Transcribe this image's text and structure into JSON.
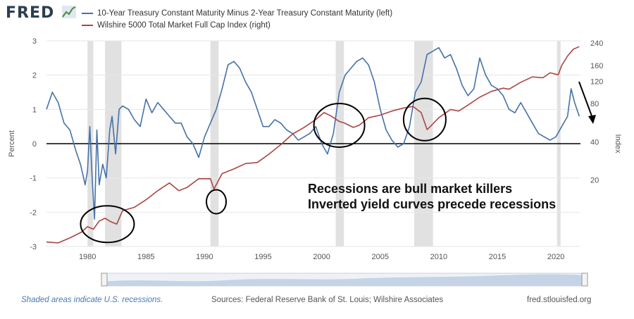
{
  "header": {
    "logo_text": "FRED",
    "legend": [
      {
        "label": "10-Year Treasury Constant Maturity Minus 2-Year Treasury Constant Maturity (left)",
        "color": "#4572a7"
      },
      {
        "label": "Wilshire 5000 Total Market Full Cap Index (right)",
        "color": "#aa4643"
      }
    ]
  },
  "annotations": {
    "line1": "Recessions are bull market killers",
    "line2": "Inverted yield curves precede recessions"
  },
  "footer": {
    "note": "Shaded areas indicate U.S. recessions.",
    "sources": "Sources: Federal Reserve Bank of St. Louis; Wilshire Associates",
    "site": "fred.stlouisfed.org"
  },
  "chart_data": {
    "type": "line",
    "title": "",
    "xlabel": "",
    "ylabel_left": "Percent",
    "ylabel_right": "Index",
    "x_range": [
      1976.5,
      2022.1
    ],
    "x_ticks": [
      1980,
      1985,
      1990,
      1995,
      2000,
      2005,
      2010,
      2015,
      2020
    ],
    "y_left_range": [
      -3,
      3
    ],
    "y_left_ticks": [
      -3,
      -2,
      -1,
      0,
      1,
      2,
      3
    ],
    "y_right_log_range": [
      6,
      250
    ],
    "y_right_ticks": [
      20,
      40,
      80,
      120,
      160,
      240
    ],
    "recessions": [
      [
        1980.0,
        1980.5
      ],
      [
        1981.5,
        1982.9
      ],
      [
        1990.5,
        1991.2
      ],
      [
        2001.2,
        2001.9
      ],
      [
        2007.9,
        2009.5
      ],
      [
        2020.1,
        2020.4
      ]
    ],
    "series": [
      {
        "name": "10-Year Treasury Constant Maturity Minus 2-Year Treasury Constant Maturity (left)",
        "axis": "left",
        "x": [
          1976.5,
          1977.0,
          1977.5,
          1978.0,
          1978.5,
          1979.0,
          1979.4,
          1979.8,
          1980.0,
          1980.2,
          1980.4,
          1980.6,
          1980.8,
          1981.0,
          1981.3,
          1981.6,
          1981.9,
          1982.1,
          1982.4,
          1982.7,
          1983.0,
          1983.5,
          1984.0,
          1984.5,
          1985.0,
          1985.5,
          1986.0,
          1986.5,
          1987.0,
          1987.5,
          1988.0,
          1988.5,
          1989.0,
          1989.5,
          1990.0,
          1990.5,
          1991.0,
          1991.5,
          1992.0,
          1992.5,
          1993.0,
          1993.5,
          1994.0,
          1994.5,
          1995.0,
          1995.5,
          1996.0,
          1996.5,
          1997.0,
          1997.5,
          1998.0,
          1998.5,
          1999.0,
          1999.5,
          2000.0,
          2000.5,
          2001.0,
          2001.5,
          2002.0,
          2002.5,
          2003.0,
          2003.5,
          2004.0,
          2004.5,
          2005.0,
          2005.5,
          2006.0,
          2006.5,
          2007.0,
          2007.5,
          2008.0,
          2008.5,
          2009.0,
          2009.5,
          2010.0,
          2010.5,
          2011.0,
          2011.5,
          2012.0,
          2012.5,
          2013.0,
          2013.5,
          2014.0,
          2014.5,
          2015.0,
          2015.5,
          2016.0,
          2016.5,
          2017.0,
          2017.5,
          2018.0,
          2018.5,
          2019.0,
          2019.5,
          2020.0,
          2020.5,
          2021.0,
          2021.3,
          2021.6,
          2022.0
        ],
        "values": [
          1.0,
          1.5,
          1.2,
          0.6,
          0.4,
          -0.2,
          -0.6,
          -1.2,
          -0.8,
          0.5,
          -1.0,
          -2.2,
          0.4,
          -1.2,
          -0.6,
          -1.0,
          0.4,
          0.8,
          -0.3,
          1.0,
          1.1,
          1.0,
          0.7,
          0.5,
          1.3,
          0.9,
          1.2,
          1.0,
          0.8,
          0.6,
          0.6,
          0.2,
          0.0,
          -0.4,
          0.2,
          0.6,
          1.0,
          1.6,
          2.3,
          2.4,
          2.2,
          1.8,
          1.5,
          1.0,
          0.5,
          0.5,
          0.7,
          0.6,
          0.4,
          0.3,
          0.1,
          0.2,
          0.3,
          0.5,
          0.0,
          -0.3,
          0.3,
          1.5,
          2.0,
          2.2,
          2.4,
          2.5,
          2.3,
          1.8,
          1.0,
          0.4,
          0.1,
          -0.1,
          0.0,
          0.5,
          1.5,
          1.8,
          2.6,
          2.7,
          2.8,
          2.5,
          2.6,
          2.2,
          1.7,
          1.4,
          1.6,
          2.5,
          2.0,
          1.7,
          1.6,
          1.4,
          1.0,
          0.9,
          1.2,
          0.9,
          0.6,
          0.3,
          0.2,
          0.1,
          0.2,
          0.5,
          0.8,
          1.6,
          1.2,
          0.8
        ]
      },
      {
        "name": "Wilshire 5000 Total Market Full Cap Index (right)",
        "axis": "right",
        "x": [
          1976.5,
          1977.5,
          1978.5,
          1979.5,
          1980.0,
          1980.5,
          1981.0,
          1981.5,
          1982.0,
          1982.5,
          1983.0,
          1984.0,
          1985.0,
          1986.0,
          1987.0,
          1987.8,
          1988.5,
          1989.5,
          1990.5,
          1990.8,
          1991.5,
          1992.5,
          1993.5,
          1994.5,
          1995.5,
          1996.5,
          1997.5,
          1998.5,
          1999.5,
          2000.2,
          2000.8,
          2001.5,
          2002.0,
          2002.7,
          2003.2,
          2004.0,
          2005.0,
          2006.0,
          2007.0,
          2007.8,
          2008.5,
          2009.0,
          2009.2,
          2010.0,
          2011.0,
          2011.7,
          2012.5,
          2013.5,
          2014.5,
          2015.5,
          2016.0,
          2017.0,
          2018.0,
          2018.9,
          2019.5,
          2020.2,
          2020.5,
          2021.0,
          2021.5,
          2022.0
        ],
        "values": [
          6.5,
          6.4,
          7.0,
          7.8,
          8.6,
          8.2,
          9.5,
          10.0,
          9.4,
          9.0,
          11.5,
          12.2,
          14.0,
          16.5,
          19.0,
          16.5,
          17.5,
          20.5,
          20.5,
          17.0,
          22.5,
          24.5,
          27.0,
          27.5,
          32.0,
          38.0,
          46.0,
          52.0,
          60.0,
          68.0,
          64.0,
          58.0,
          56.0,
          52.0,
          54.0,
          62.0,
          65.0,
          70.0,
          74.0,
          76.0,
          68.0,
          50.0,
          52.0,
          62.0,
          72.0,
          70.0,
          78.0,
          90.0,
          100.0,
          106.0,
          104.0,
          118.0,
          130.0,
          128.0,
          140.0,
          135.0,
          160.0,
          190.0,
          215.0,
          225.0
        ]
      }
    ]
  }
}
